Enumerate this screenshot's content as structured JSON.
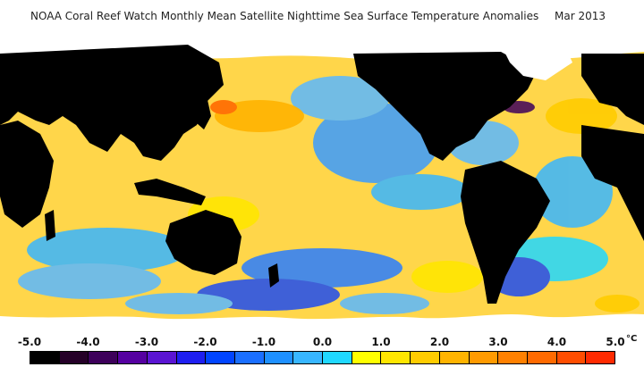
{
  "header": {
    "title": "NOAA Coral Reef Watch Monthly Mean Satellite Nighttime Sea Surface Temperature Anomalies",
    "date": "Mar 2013"
  },
  "legend": {
    "ticks": [
      "-5.0",
      "-4.0",
      "-3.0",
      "-2.0",
      "-1.0",
      "0.0",
      "1.0",
      "2.0",
      "3.0",
      "4.0",
      "5.0"
    ],
    "unit": "°C",
    "swatches": [
      "#000000",
      "#250028",
      "#3d005a",
      "#5500a0",
      "#5a14d2",
      "#1e1ef0",
      "#0044ff",
      "#1a6fff",
      "#1e90ff",
      "#38b6ff",
      "#20d8ff",
      "#ffff00",
      "#ffe600",
      "#ffcc00",
      "#ffb300",
      "#ff9a00",
      "#ff8000",
      "#ff6a00",
      "#ff4d00",
      "#ff2a00"
    ]
  },
  "map": {
    "ocean_color": "#ffd64a",
    "land_color": "#000000",
    "ice_color": "#ffffff"
  }
}
